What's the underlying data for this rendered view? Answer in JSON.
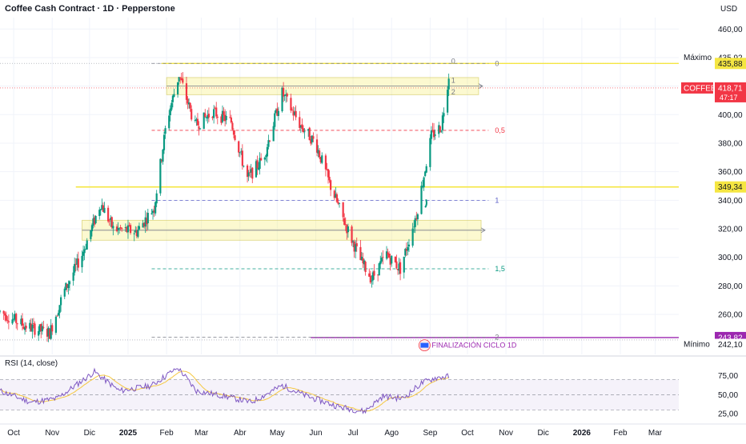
{
  "header": {
    "title": "Coffee Cash Contract · 1D · Pepperstone",
    "currency": "USD"
  },
  "chart_data": {
    "type": "candlestick",
    "title": "Coffee Cash Contract · 1D · Pepperstone",
    "ylim": [
      232,
      468
    ],
    "y_ticks": [
      260,
      280,
      300,
      320,
      340,
      360,
      380,
      400,
      420,
      440,
      460
    ],
    "y_tick_labels": [
      "260,00",
      "280,00",
      "300,00",
      "320,00",
      "340,00",
      "360,00",
      "380,00",
      "400,00",
      "420,00",
      "440,00",
      "460,00"
    ],
    "x_labels": [
      "Oct",
      "Nov",
      "Dic",
      "2025",
      "Feb",
      "Mar",
      "Abr",
      "May",
      "Jun",
      "Jul",
      "Ago",
      "Sep",
      "Oct",
      "Nov",
      "Dic",
      "2026",
      "Feb",
      "Mar"
    ],
    "x_label_dates": [
      "2024-10-01",
      "2024-11-01",
      "2024-12-01",
      "2025-01-01",
      "2025-02-01",
      "2025-03-01",
      "2025-04-01",
      "2025-05-01",
      "2025-06-01",
      "2025-07-01",
      "2025-08-01",
      "2025-09-01",
      "2025-10-01",
      "2025-11-01",
      "2025-12-01",
      "2026-01-01",
      "2026-02-01",
      "2026-03-01"
    ],
    "price_anchors": [
      {
        "date": "2024-09-20",
        "price": 262
      },
      {
        "date": "2024-10-10",
        "price": 252
      },
      {
        "date": "2024-10-30",
        "price": 247
      },
      {
        "date": "2024-11-10",
        "price": 275
      },
      {
        "date": "2024-11-25",
        "price": 302
      },
      {
        "date": "2024-12-10",
        "price": 338
      },
      {
        "date": "2024-12-20",
        "price": 320
      },
      {
        "date": "2025-01-08",
        "price": 318
      },
      {
        "date": "2025-01-22",
        "price": 335
      },
      {
        "date": "2025-02-01",
        "price": 395
      },
      {
        "date": "2025-02-11",
        "price": 428
      },
      {
        "date": "2025-02-24",
        "price": 392
      },
      {
        "date": "2025-03-10",
        "price": 402
      },
      {
        "date": "2025-03-25",
        "price": 395
      },
      {
        "date": "2025-04-07",
        "price": 355
      },
      {
        "date": "2025-04-20",
        "price": 370
      },
      {
        "date": "2025-05-05",
        "price": 415
      },
      {
        "date": "2025-05-20",
        "price": 392
      },
      {
        "date": "2025-06-01",
        "price": 380
      },
      {
        "date": "2025-06-12",
        "price": 352
      },
      {
        "date": "2025-06-24",
        "price": 325
      },
      {
        "date": "2025-07-07",
        "price": 298
      },
      {
        "date": "2025-07-16",
        "price": 285
      },
      {
        "date": "2025-07-28",
        "price": 302
      },
      {
        "date": "2025-08-08",
        "price": 292
      },
      {
        "date": "2025-08-21",
        "price": 330
      },
      {
        "date": "2025-09-02",
        "price": 385
      },
      {
        "date": "2025-09-10",
        "price": 392
      },
      {
        "date": "2025-09-16",
        "price": 428
      }
    ],
    "rsi": {
      "label": "RSI (14, close)",
      "ylim": [
        20,
        85
      ],
      "levels": [
        70,
        50,
        30
      ],
      "tick_labels": [
        "75,00",
        "50,00",
        "25,00"
      ],
      "tick_values": [
        75,
        50,
        25
      ],
      "anchors": [
        {
          "date": "2024-09-20",
          "value": 55
        },
        {
          "date": "2024-10-15",
          "value": 40
        },
        {
          "date": "2024-11-05",
          "value": 45
        },
        {
          "date": "2024-12-05",
          "value": 80
        },
        {
          "date": "2024-12-25",
          "value": 55
        },
        {
          "date": "2025-01-20",
          "value": 62
        },
        {
          "date": "2025-02-10",
          "value": 86
        },
        {
          "date": "2025-02-25",
          "value": 55
        },
        {
          "date": "2025-03-20",
          "value": 48
        },
        {
          "date": "2025-04-10",
          "value": 40
        },
        {
          "date": "2025-05-05",
          "value": 62
        },
        {
          "date": "2025-05-25",
          "value": 48
        },
        {
          "date": "2025-06-20",
          "value": 34
        },
        {
          "date": "2025-07-10",
          "value": 28
        },
        {
          "date": "2025-07-25",
          "value": 48
        },
        {
          "date": "2025-08-10",
          "value": 45
        },
        {
          "date": "2025-08-25",
          "value": 65
        },
        {
          "date": "2025-09-05",
          "value": 72
        },
        {
          "date": "2025-09-16",
          "value": 74
        }
      ]
    }
  },
  "price_labels": {
    "maximo": {
      "label": "Máximo",
      "value": "435,92",
      "price": 435.92
    },
    "level_435": {
      "value": "435,88",
      "price": 435.88
    },
    "current": {
      "symbol": "COFFEE",
      "value": "418,71",
      "countdown": "47:17",
      "price": 418.71
    },
    "level_349": {
      "value": "349,34",
      "price": 349.34
    },
    "level_243": {
      "value": "243,82",
      "price": 243.82
    },
    "minimo": {
      "label": "Mínimo",
      "value": "242,10",
      "price": 242.1
    }
  },
  "fib_levels": [
    {
      "label": "0",
      "price": 435.9,
      "color": "#787b86"
    },
    {
      "label": "0,5",
      "price": 389,
      "color": "#f23645"
    },
    {
      "label": "1",
      "price": 340,
      "color": "#5b5fc7"
    },
    {
      "label": "1,5",
      "price": 292,
      "color": "#089981"
    },
    {
      "label": "2",
      "price": 244,
      "color": "#787b86"
    }
  ],
  "small_fib_labels": [
    "0",
    "1",
    "2"
  ],
  "zones": [
    {
      "name": "upper-zone",
      "from": "2025-02-01",
      "to": "2025-10-10",
      "top": 426,
      "bottom": 414
    },
    {
      "name": "lower-zone",
      "from": "2024-11-25",
      "to": "2025-10-12",
      "top": 326,
      "bottom": 312
    }
  ],
  "annotation": {
    "text": "FINALIZACIÓN CICLO 1D"
  },
  "colors": {
    "up": "#089981",
    "down": "#f23645",
    "accent_yellow": "#f5e642",
    "purple": "#9c27b0",
    "rsi_line": "#7e57c2",
    "rsi_ma": "#f5c842"
  }
}
